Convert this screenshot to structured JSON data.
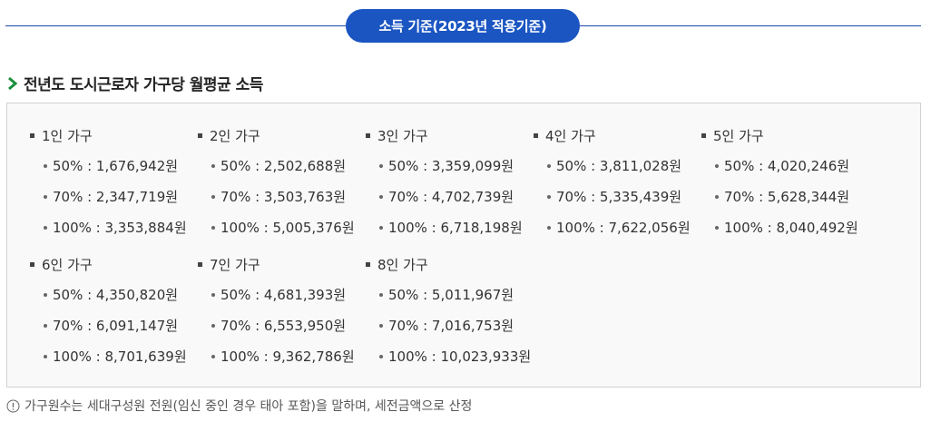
{
  "header": {
    "title": "소득 기준(2023년 적용기준)"
  },
  "section": {
    "heading": "전년도 도시근로자 가구당 월평균 소득"
  },
  "groups": [
    {
      "label": "1인 가구",
      "items": [
        "50% : 1,676,942원",
        "70% : 2,347,719원",
        "100% : 3,353,884원"
      ]
    },
    {
      "label": "2인 가구",
      "items": [
        "50% : 2,502,688원",
        "70% : 3,503,763원",
        "100% : 5,005,376원"
      ]
    },
    {
      "label": "3인 가구",
      "items": [
        "50% : 3,359,099원",
        "70% : 4,702,739원",
        "100% : 6,718,198원"
      ]
    },
    {
      "label": "4인 가구",
      "items": [
        "50% : 3,811,028원",
        "70% : 5,335,439원",
        "100% : 7,622,056원"
      ]
    },
    {
      "label": "5인 가구",
      "items": [
        "50% : 4,020,246원",
        "70% : 5,628,344원",
        "100% : 8,040,492원"
      ]
    },
    {
      "label": "6인 가구",
      "items": [
        "50% : 4,350,820원",
        "70% : 6,091,147원",
        "100% : 8,701,639원"
      ]
    },
    {
      "label": "7인 가구",
      "items": [
        "50% : 4,681,393원",
        "70% : 6,553,950원",
        "100% : 9,362,786원"
      ]
    },
    {
      "label": "8인 가구",
      "items": [
        "50% : 5,011,967원",
        "70% : 7,016,753원",
        "100% : 10,023,933원"
      ]
    }
  ],
  "note": {
    "text": "가구원수는 세대구성원 전원(임신 중인 경우 태아 포함)을 말하며, 세전금액으로 산정",
    "icon": "info-circle-icon"
  },
  "colors": {
    "accent": "#1a55c2",
    "chevron": "#1a8f3c"
  }
}
